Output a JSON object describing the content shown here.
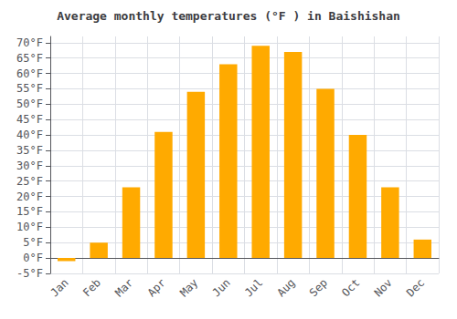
{
  "chart_data": {
    "type": "bar",
    "title": "Average monthly temperatures (°F ) in Baishishan",
    "categories": [
      "Jan",
      "Feb",
      "Mar",
      "Apr",
      "May",
      "Jun",
      "Jul",
      "Aug",
      "Sep",
      "Oct",
      "Nov",
      "Dec"
    ],
    "values": [
      -1,
      5,
      23,
      41,
      54,
      63,
      69,
      67,
      55,
      40,
      23,
      6
    ],
    "color": "#FFAA00",
    "ylim": [
      -5,
      72
    ],
    "yticks": [
      {
        "value": -5,
        "label": "-5°F"
      },
      {
        "value": 0,
        "label": "0°F"
      },
      {
        "value": 5,
        "label": "5°F"
      },
      {
        "value": 10,
        "label": "10°F"
      },
      {
        "value": 15,
        "label": "15°F"
      },
      {
        "value": 20,
        "label": "20°F"
      },
      {
        "value": 25,
        "label": "25°F"
      },
      {
        "value": 30,
        "label": "30°F"
      },
      {
        "value": 35,
        "label": "35°F"
      },
      {
        "value": 40,
        "label": "40°F"
      },
      {
        "value": 45,
        "label": "45°F"
      },
      {
        "value": 50,
        "label": "50°F"
      },
      {
        "value": 55,
        "label": "55°F"
      },
      {
        "value": 60,
        "label": "60°F"
      },
      {
        "value": 65,
        "label": "65°F"
      },
      {
        "value": 70,
        "label": "70°F"
      }
    ],
    "grid": true
  }
}
